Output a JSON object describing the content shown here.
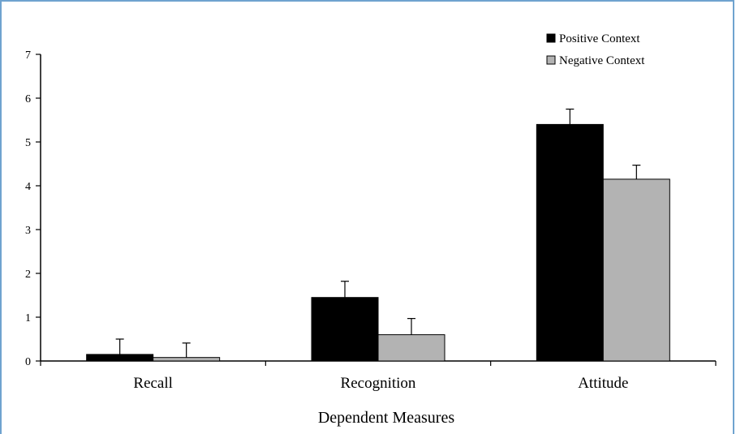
{
  "chart_data": {
    "type": "bar",
    "title": "",
    "xlabel": "Dependent Measures",
    "ylabel": "",
    "ylim": [
      0,
      7
    ],
    "yticks": [
      0,
      1,
      2,
      3,
      4,
      5,
      6,
      7
    ],
    "categories": [
      "Recall",
      "Recognition",
      "Attitude"
    ],
    "series": [
      {
        "name": "Positive Context",
        "color": "#000000",
        "values": [
          0.15,
          1.45,
          5.4
        ],
        "error": [
          0.35,
          0.37,
          0.35
        ]
      },
      {
        "name": "Negative Context",
        "color": "#b3b3b3",
        "values": [
          0.08,
          0.6,
          4.15
        ],
        "error": [
          0.33,
          0.37,
          0.32
        ]
      }
    ],
    "legend_position": "top-right",
    "grid": false
  }
}
